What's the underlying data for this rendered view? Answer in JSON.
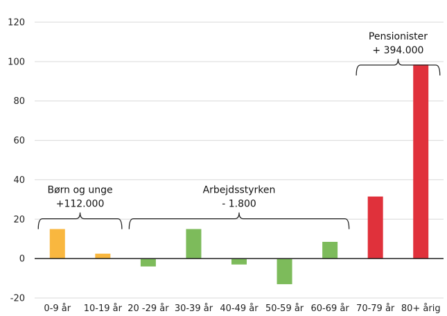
{
  "chart_data": {
    "type": "bar",
    "categories": [
      "0-9 år",
      "10-19 år",
      "20 -29 år",
      "30-39 år",
      "40-49 år",
      "50-59 år",
      "60-69 år",
      "70-79 år",
      "80+ årig"
    ],
    "values": [
      15,
      2.5,
      -4,
      15,
      -3,
      -13,
      8.5,
      31.5,
      98.5
    ],
    "bar_colors": [
      "#f9b73f",
      "#f9b73f",
      "#7dbb5b",
      "#7dbb5b",
      "#7dbb5b",
      "#7dbb5b",
      "#7dbb5b",
      "#e0313b",
      "#e0313b"
    ],
    "ylim": [
      -20,
      120
    ],
    "yticks": [
      -20,
      0,
      20,
      40,
      60,
      80,
      100,
      120
    ],
    "grid": true,
    "title": "",
    "xlabel": "",
    "ylabel": "",
    "annotations": [
      {
        "lines": [
          "Børn og unge",
          "+112.000"
        ],
        "from": 0,
        "to": 1,
        "y": 22
      },
      {
        "lines": [
          "Arbejdsstyrken",
          "- 1.800"
        ],
        "from": 2,
        "to": 6,
        "y": 22
      },
      {
        "lines": [
          "Pensionister",
          "+ 394.000"
        ],
        "from": 7,
        "to": 8,
        "y": 100
      }
    ]
  }
}
